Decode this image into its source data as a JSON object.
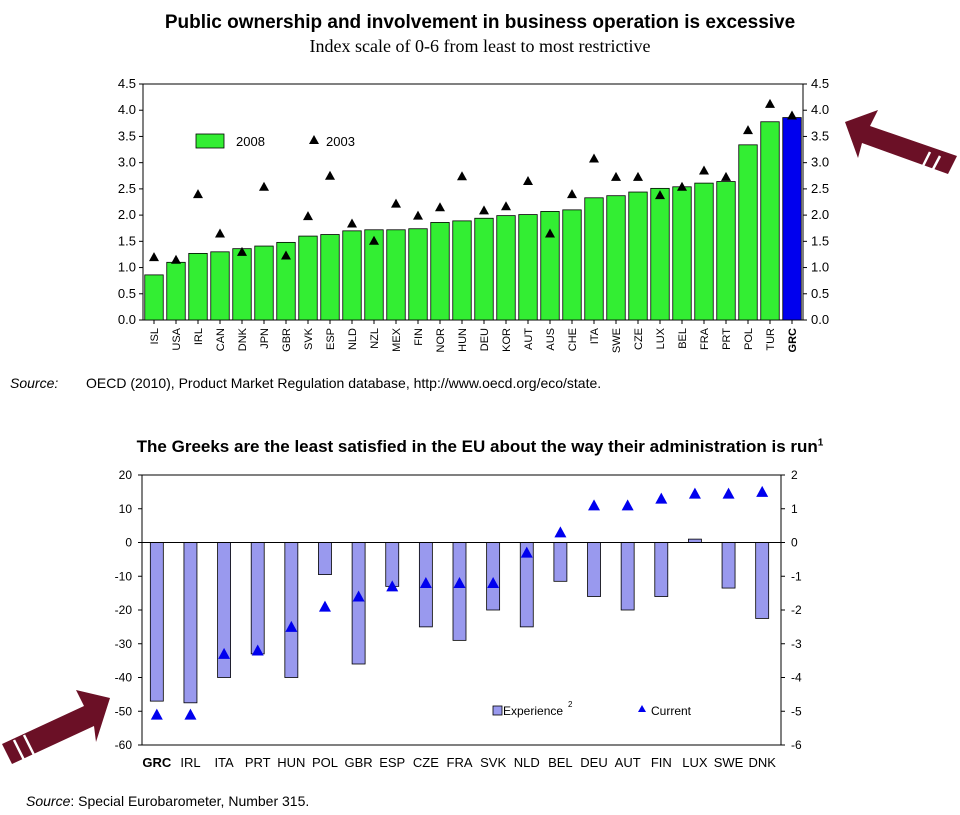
{
  "chart_data": [
    {
      "type": "bar",
      "title": "Public ownership and involvement in business operation is excessive",
      "subtitle": "Index scale of 0-6 from least to most restrictive",
      "ylim": [
        0,
        4.5
      ],
      "yticks": [
        "0.0",
        "0.5",
        "1.0",
        "1.5",
        "2.0",
        "2.5",
        "3.0",
        "3.5",
        "4.0",
        "4.5"
      ],
      "legend_position": "top-left",
      "categories": [
        "ISL",
        "USA",
        "IRL",
        "CAN",
        "DNK",
        "JPN",
        "GBR",
        "SVK",
        "ESP",
        "NLD",
        "NZL",
        "MEX",
        "FIN",
        "NOR",
        "HUN",
        "DEU",
        "KOR",
        "AUT",
        "AUS",
        "CHE",
        "ITA",
        "SWE",
        "CZE",
        "LUX",
        "BEL",
        "FRA",
        "PRT",
        "POL",
        "TUR",
        "GRC"
      ],
      "highlight_category": "GRC",
      "series": [
        {
          "name": "2008",
          "kind": "bar",
          "color": "#33ee33",
          "values": [
            0.86,
            1.1,
            1.27,
            1.3,
            1.36,
            1.41,
            1.48,
            1.6,
            1.63,
            1.7,
            1.72,
            1.72,
            1.74,
            1.86,
            1.89,
            1.94,
            1.99,
            2.01,
            2.07,
            2.1,
            2.33,
            2.37,
            2.44,
            2.51,
            2.54,
            2.61,
            2.64,
            3.34,
            3.78,
            3.86
          ]
        },
        {
          "name": "2003",
          "kind": "marker",
          "color": "#000000",
          "values": [
            1.2,
            1.15,
            2.4,
            1.65,
            1.3,
            2.54,
            1.23,
            1.98,
            2.75,
            1.84,
            1.51,
            2.22,
            1.99,
            2.15,
            2.74,
            2.09,
            2.17,
            2.65,
            1.65,
            2.4,
            3.08,
            2.73,
            2.73,
            2.38,
            2.54,
            2.85,
            2.73,
            3.62,
            4.12,
            3.9
          ]
        }
      ],
      "highlight_color": "#0000ee"
    },
    {
      "type": "bar",
      "title": "The Greeks are the least satisfied in the EU about the way their administration is run",
      "title_sup": "1",
      "ylim": [
        -60,
        20
      ],
      "y2lim": [
        -6,
        2
      ],
      "yticks": [
        "20",
        "10",
        "0",
        "-10",
        "-20",
        "-30",
        "-40",
        "-50",
        "-60"
      ],
      "y2ticks": [
        "2",
        "1",
        "0",
        "-1",
        "-2",
        "-3",
        "-4",
        "-5",
        "-6"
      ],
      "legend_position": "bottom-right",
      "categories": [
        "GRC",
        "IRL",
        "ITA",
        "PRT",
        "HUN",
        "POL",
        "GBR",
        "ESP",
        "CZE",
        "FRA",
        "SVK",
        "NLD",
        "BEL",
        "DEU",
        "AUT",
        "FIN",
        "LUX",
        "SWE",
        "DNK"
      ],
      "highlight_category": "GRC",
      "series": [
        {
          "name": "Experience",
          "name_sup": "2",
          "kind": "bar",
          "color": "#9999ee",
          "values": [
            -47,
            -47.5,
            -40,
            -33,
            -40,
            -9.5,
            -36,
            -13,
            -25,
            -29,
            -20,
            -25,
            -11.5,
            -16,
            -20,
            -16,
            1,
            -13.5,
            -22.5
          ]
        },
        {
          "name": "Current",
          "kind": "marker",
          "color": "#0000ee",
          "axis": "right",
          "values": [
            -5.1,
            -5.1,
            -3.3,
            -3.2,
            -2.5,
            -1.9,
            -1.6,
            -1.3,
            -1.2,
            -1.2,
            -1.2,
            -0.3,
            0.3,
            1.1,
            1.1,
            1.3,
            1.45,
            1.45,
            1.5
          ]
        }
      ]
    }
  ],
  "sources": {
    "s1": {
      "label": "Source:",
      "text": "OECD (2010), Product Market Regulation database, http://www.oecd.org/eco/state."
    },
    "s2": {
      "label": "Source",
      "text": ": Special Eurobarometer, Number 315."
    }
  },
  "arrow_color": "#6b1026"
}
